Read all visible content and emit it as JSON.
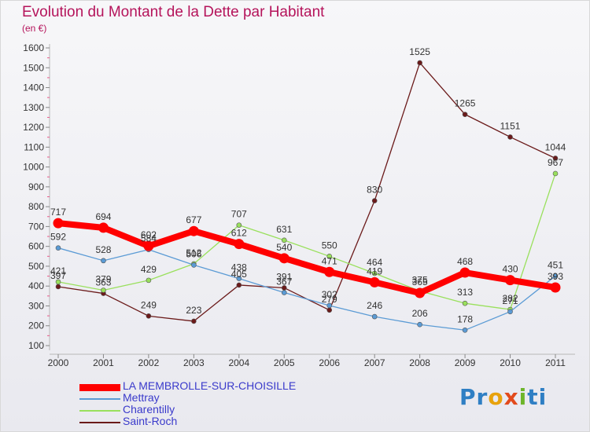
{
  "chart_data": {
    "type": "line",
    "title": "Evolution du Montant de la Dette par Habitant",
    "unit_label": "(en €)",
    "categories": [
      "2000",
      "2001",
      "2002",
      "2003",
      "2004",
      "2005",
      "2006",
      "2007",
      "2008",
      "2009",
      "2010",
      "2011"
    ],
    "ylim": [
      100,
      1600
    ],
    "y_ticks": [
      100,
      200,
      300,
      400,
      500,
      600,
      700,
      800,
      900,
      1000,
      1100,
      1200,
      1300,
      1400,
      1500,
      1600
    ],
    "grid": false,
    "legend_position": "bottom-left",
    "series": [
      {
        "name": "LA MEMBROLLE-SUR-CHOISILLE",
        "color": "#ff0000",
        "values": [
          717,
          694,
          602,
          677,
          612,
          540,
          471,
          419,
          365,
          468,
          430,
          393
        ]
      },
      {
        "name": "Mettray",
        "color": "#5b9bd5",
        "values": [
          592,
          528,
          584,
          506,
          438,
          367,
          302,
          246,
          206,
          178,
          271,
          451
        ]
      },
      {
        "name": "Charentilly",
        "color": "#99e05c",
        "values": [
          421,
          379,
          429,
          512,
          707,
          631,
          550,
          464,
          375,
          313,
          282,
          967
        ]
      },
      {
        "name": "Saint-Roch",
        "color": "#6b1a1a",
        "values": [
          397,
          363,
          249,
          223,
          405,
          391,
          279,
          830,
          1525,
          1265,
          1151,
          1044
        ]
      }
    ]
  },
  "logo_text": [
    "Pr",
    "o",
    "x",
    "i",
    "ti"
  ]
}
